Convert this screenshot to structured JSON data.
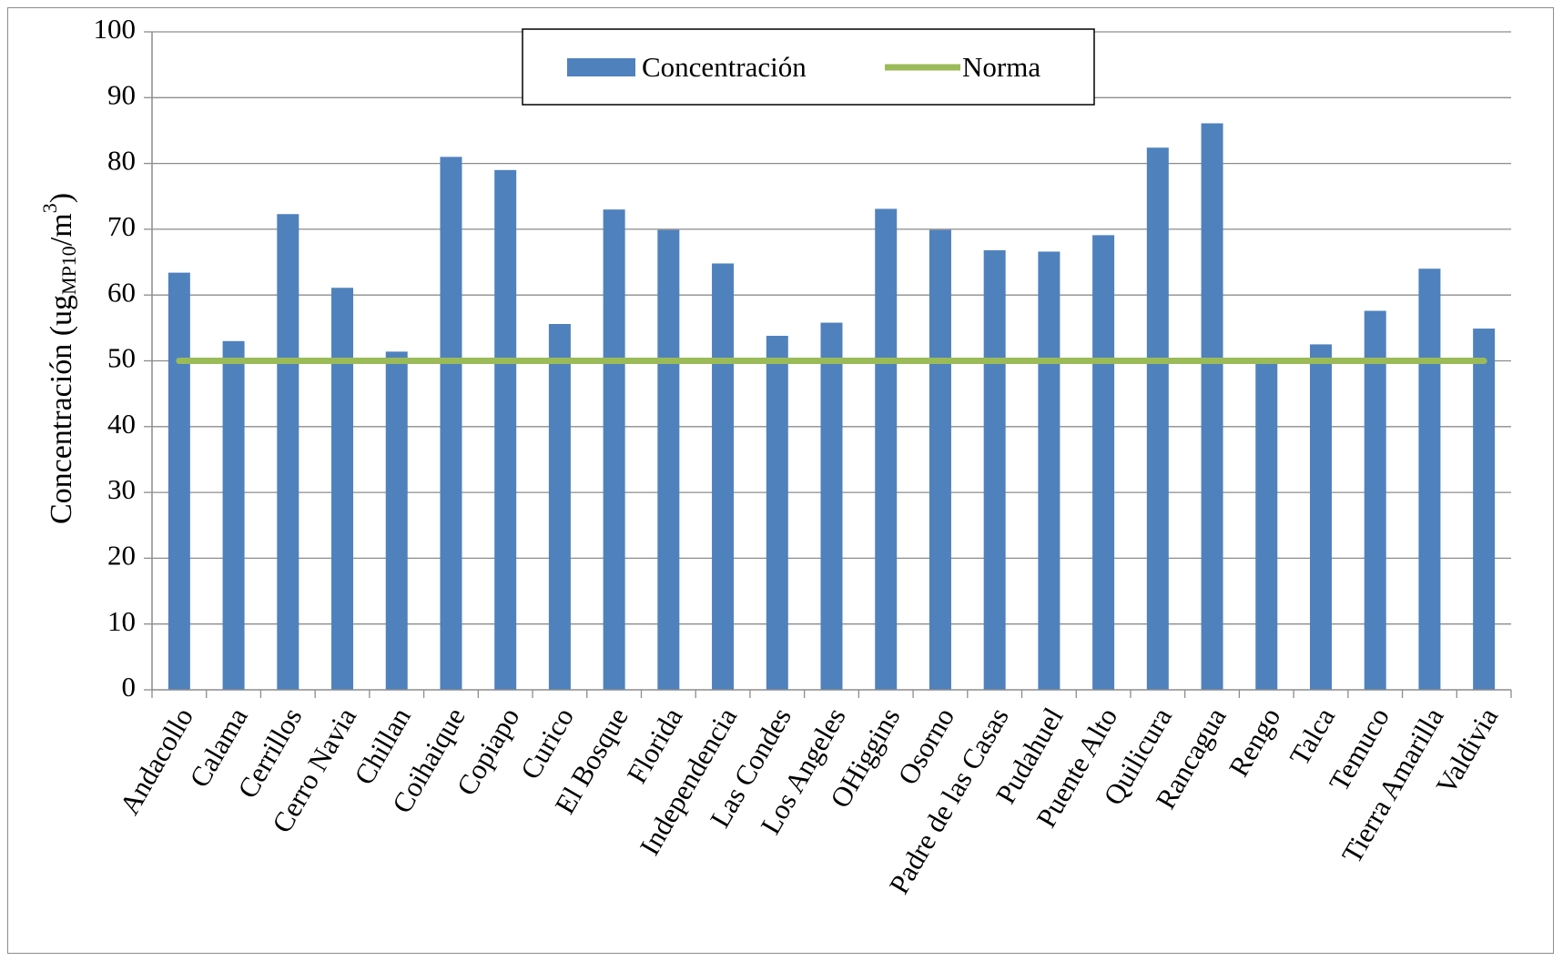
{
  "chart_data": {
    "type": "bar",
    "title": "",
    "xlabel": "",
    "ylabel": {
      "main": "Concentración (ug",
      "subscript": "MP10",
      "middle": "/m",
      "superscript": "3",
      "end": ")"
    },
    "ylim": [
      0,
      100
    ],
    "yticks": [
      0,
      10,
      20,
      30,
      40,
      50,
      60,
      70,
      80,
      90,
      100
    ],
    "ytick_labels": [
      "0",
      "10",
      "20",
      "30",
      "40",
      "50",
      "60",
      "70",
      "80",
      "90",
      "100"
    ],
    "grid": true,
    "legend_position": "top-center",
    "categories": [
      "Andacollo",
      "Calama",
      "Cerrillos",
      "Cerro Navia",
      "Chillan",
      "Coihaique",
      "Copiapo",
      "Curico",
      "El Bosque",
      "Florida",
      "Independencia",
      "Las Condes",
      "Los Angeles",
      "OHiggins",
      "Osorno",
      "Padre de las Casas",
      "Pudahuel",
      "Puente Alto",
      "Quilicura",
      "Rancagua",
      "Rengo",
      "Talca",
      "Temuco",
      "Tierra Amarilla",
      "Valdivia"
    ],
    "series": [
      {
        "name": "Concentración",
        "type": "bar",
        "color": "#4F81BD",
        "values": [
          63.4,
          53,
          72.3,
          61.1,
          51.4,
          81,
          79,
          55.6,
          73,
          69.9,
          64.8,
          53.8,
          55.8,
          73.1,
          69.9,
          66.8,
          66.6,
          69.1,
          82.4,
          86.1,
          50.2,
          52.5,
          57.6,
          64,
          54.9
        ]
      },
      {
        "name": "Norma",
        "type": "line",
        "color": "#9BBB59",
        "values": [
          50,
          50,
          50,
          50,
          50,
          50,
          50,
          50,
          50,
          50,
          50,
          50,
          50,
          50,
          50,
          50,
          50,
          50,
          50,
          50,
          50,
          50,
          50,
          50,
          50
        ]
      }
    ]
  },
  "colors": {
    "bar": "#4F81BD",
    "norma": "#9BBB59",
    "grid": "#8c8c8c",
    "axis": "#8c8c8c"
  }
}
